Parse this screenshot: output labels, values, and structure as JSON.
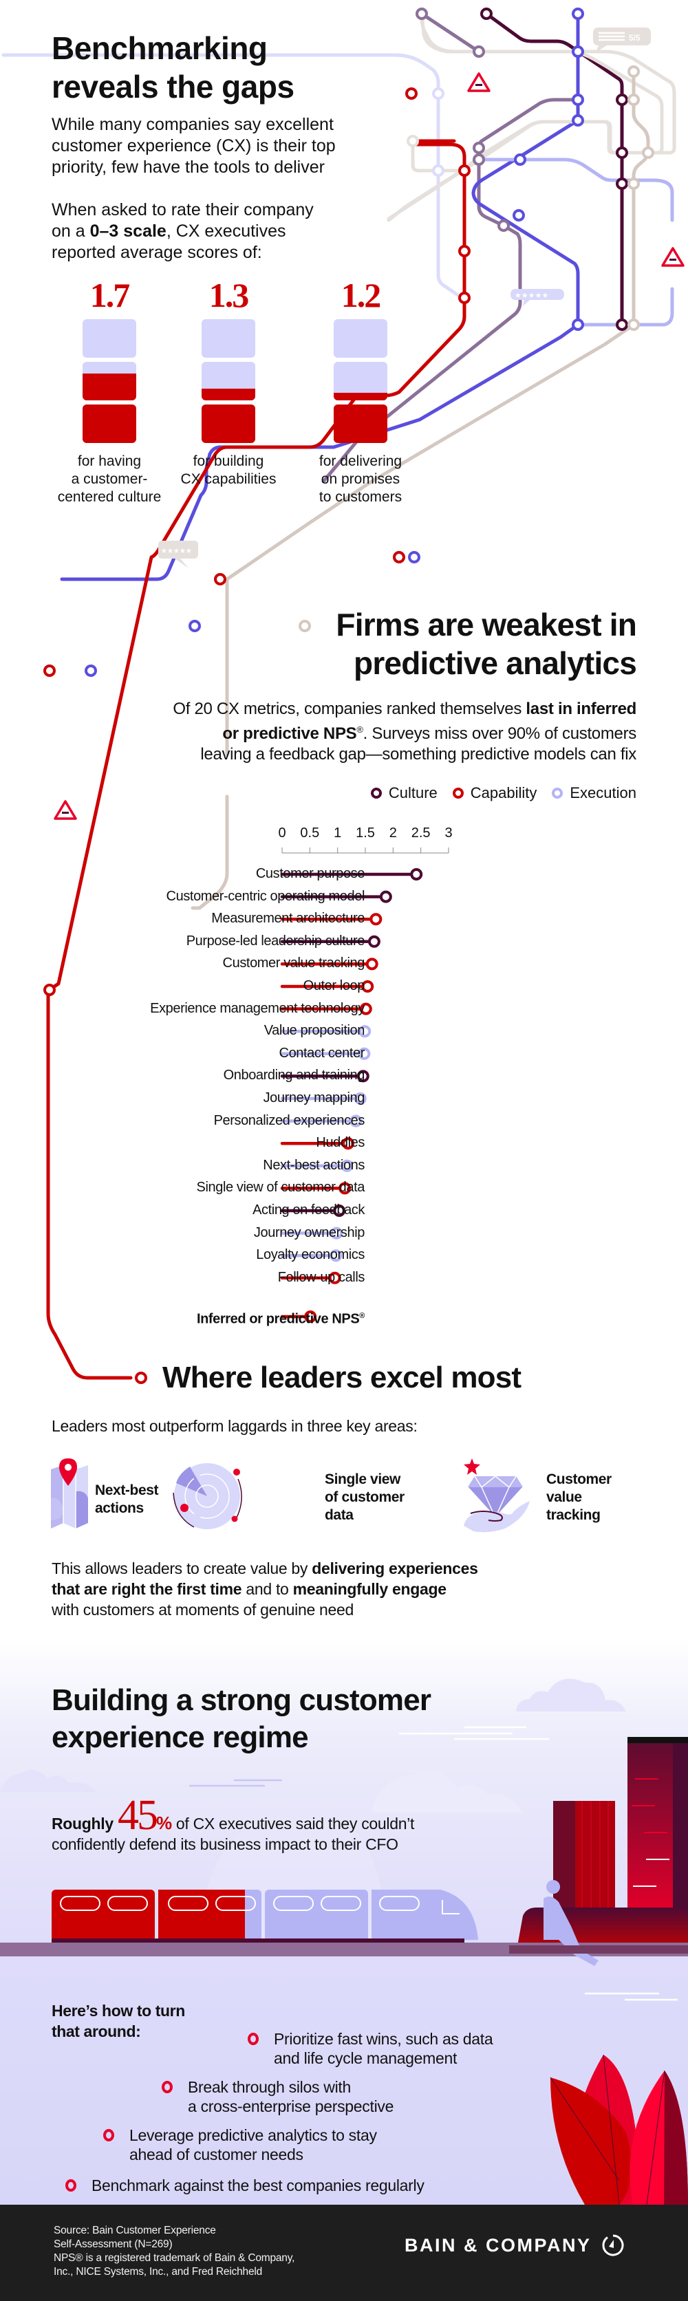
{
  "colors": {
    "culture": "#4d0a33",
    "capability": "#cc0000",
    "execution": "#b4b4f5",
    "accent_red": "#cc0000",
    "alert_red": "#e8002a",
    "line_blue": "#5a4ede",
    "line_mauve": "#8b7099",
    "line_beige": "#d4c8c0",
    "line_lavender": "#d8d8fb",
    "footer_bg": "#1e1e1e"
  },
  "section1": {
    "title_line1": "Benchmarking",
    "title_line2": "reveals the gaps",
    "intro_line1": "While many companies say excellent",
    "intro_line2": "customer experience (CX) is their top",
    "intro_line3": "priority, few have the tools to deliver",
    "rating_line1": "When asked to rate their company",
    "rating_line2_pre": "on a ",
    "rating_line2_bold": "0–3 scale",
    "rating_line2_post": ", CX executives",
    "rating_line3": "reported average scores of:",
    "scores": [
      {
        "value": "1.7",
        "score": 1.7,
        "caption_lines": [
          "for having",
          "a customer-",
          "centered culture"
        ]
      },
      {
        "value": "1.3",
        "score": 1.3,
        "caption_lines": [
          "for building",
          "CX capabilities"
        ]
      },
      {
        "value": "1.2",
        "score": 1.2,
        "caption_lines": [
          "for delivering",
          "on promises",
          "to customers"
        ]
      }
    ],
    "scale_max": 3
  },
  "map_badges": {
    "review_top": "5/5",
    "stars_mid": "★★★★★",
    "stars_left": "★★★★★"
  },
  "section2": {
    "title_line1": "Firms are weakest in",
    "title_line2": "predictive analytics",
    "body_line1_pre": "Of 20 CX metrics, companies ranked themselves ",
    "body_line1_bold": "last in inferred",
    "body_line2_bold": "or predictive NPS",
    "body_line2_reg": "®",
    "body_line2_post": ". Surveys miss over 90% of customers",
    "body_line3": "leaving a feedback gap—something predictive models can fix"
  },
  "chart_data": {
    "type": "lollipop",
    "title": "Firms are weakest in predictive analytics",
    "xlabel": "",
    "ylabel": "",
    "xlim": [
      0,
      3
    ],
    "x_ticks": [
      "0",
      "0.5",
      "1",
      "1.5",
      "2",
      "2.5",
      "3"
    ],
    "legend": [
      {
        "name": "Culture",
        "key": "culture"
      },
      {
        "name": "Capability",
        "key": "capability"
      },
      {
        "name": "Execution",
        "key": "execution"
      }
    ],
    "legend_position": "top-right",
    "metrics": [
      {
        "label": "Customer purpose",
        "category": "culture",
        "value": 2.42
      },
      {
        "label": "Customer-centric operating model",
        "category": "culture",
        "value": 1.87
      },
      {
        "label": "Measurement architecture",
        "category": "capability",
        "value": 1.69
      },
      {
        "label": "Purpose-led leadership culture",
        "category": "culture",
        "value": 1.66
      },
      {
        "label": "Customer value tracking",
        "category": "capability",
        "value": 1.62
      },
      {
        "label": "Outer loop",
        "category": "capability",
        "value": 1.54
      },
      {
        "label": "Experience management technology",
        "category": "capability",
        "value": 1.51
      },
      {
        "label": "Value proposition",
        "category": "execution",
        "value": 1.49
      },
      {
        "label": "Contact center",
        "category": "execution",
        "value": 1.48
      },
      {
        "label": "Onboarding and training",
        "category": "culture",
        "value": 1.46
      },
      {
        "label": "Journey mapping",
        "category": "execution",
        "value": 1.41
      },
      {
        "label": "Personalized experiences",
        "category": "execution",
        "value": 1.33
      },
      {
        "label": "Huddles",
        "category": "capability",
        "value": 1.19
      },
      {
        "label": "Next-best actions",
        "category": "execution",
        "value": 1.17
      },
      {
        "label": "Single view of customer data",
        "category": "capability",
        "value": 1.13
      },
      {
        "label": "Acting on feedback",
        "category": "culture",
        "value": 1.03
      },
      {
        "label": "Journey ownership",
        "category": "execution",
        "value": 0.98
      },
      {
        "label": "Loyalty economics",
        "category": "execution",
        "value": 0.97
      },
      {
        "label": "Follow-up calls",
        "category": "capability",
        "value": 0.95
      }
    ],
    "highlight": {
      "label": "Inferred or predictive NPS",
      "sup": "®",
      "category": "capability",
      "value": 0.51
    }
  },
  "section3": {
    "title": "Where leaders excel most",
    "intro": "Leaders most outperform laggards in three key areas:",
    "areas": [
      {
        "icon": "map-pin-icon",
        "lines": [
          "Next-best",
          "actions"
        ]
      },
      {
        "icon": "radar-icon",
        "lines": [
          "Single view",
          "of customer",
          "data"
        ]
      },
      {
        "icon": "gem-in-hand-icon",
        "lines": [
          "Customer",
          "value",
          "tracking"
        ]
      }
    ],
    "closing_line1_pre": "This allows leaders to create value by ",
    "closing_line1_bold": "delivering experiences",
    "closing_line2_bold1": "that are right the first time",
    "closing_line2_mid": " and to ",
    "closing_line2_bold2": "meaningfully engage",
    "closing_line3": "with customers at moments of genuine need"
  },
  "section4": {
    "title_line1": "Building a strong customer",
    "title_line2": "experience regime",
    "stat_pre": "Roughly ",
    "stat_value": "45",
    "stat_unit": "%",
    "stat_post_line1": " of CX executives said they couldn’t",
    "stat_line2": "confidently defend its business impact to their CFO",
    "turn_heading_line1": "Here’s how to turn",
    "turn_heading_line2": "that around:",
    "actions": [
      {
        "lines": [
          "Prioritize fast wins, such as data",
          "and life cycle management"
        ]
      },
      {
        "lines": [
          "Break through silos with",
          "a cross-enterprise perspective"
        ]
      },
      {
        "lines": [
          "Leverage predictive analytics to stay",
          "ahead of customer needs"
        ]
      },
      {
        "lines": [
          "Benchmark against the best companies regularly"
        ]
      }
    ]
  },
  "footer": {
    "source_lines": [
      "Source: Bain Customer Experience",
      "Self-Assessment (N=269)",
      "NPS® is a registered trademark of Bain & Company,",
      "Inc., NICE Systems, Inc., and Fred Reichheld"
    ],
    "brand": "BAIN & COMPANY"
  }
}
